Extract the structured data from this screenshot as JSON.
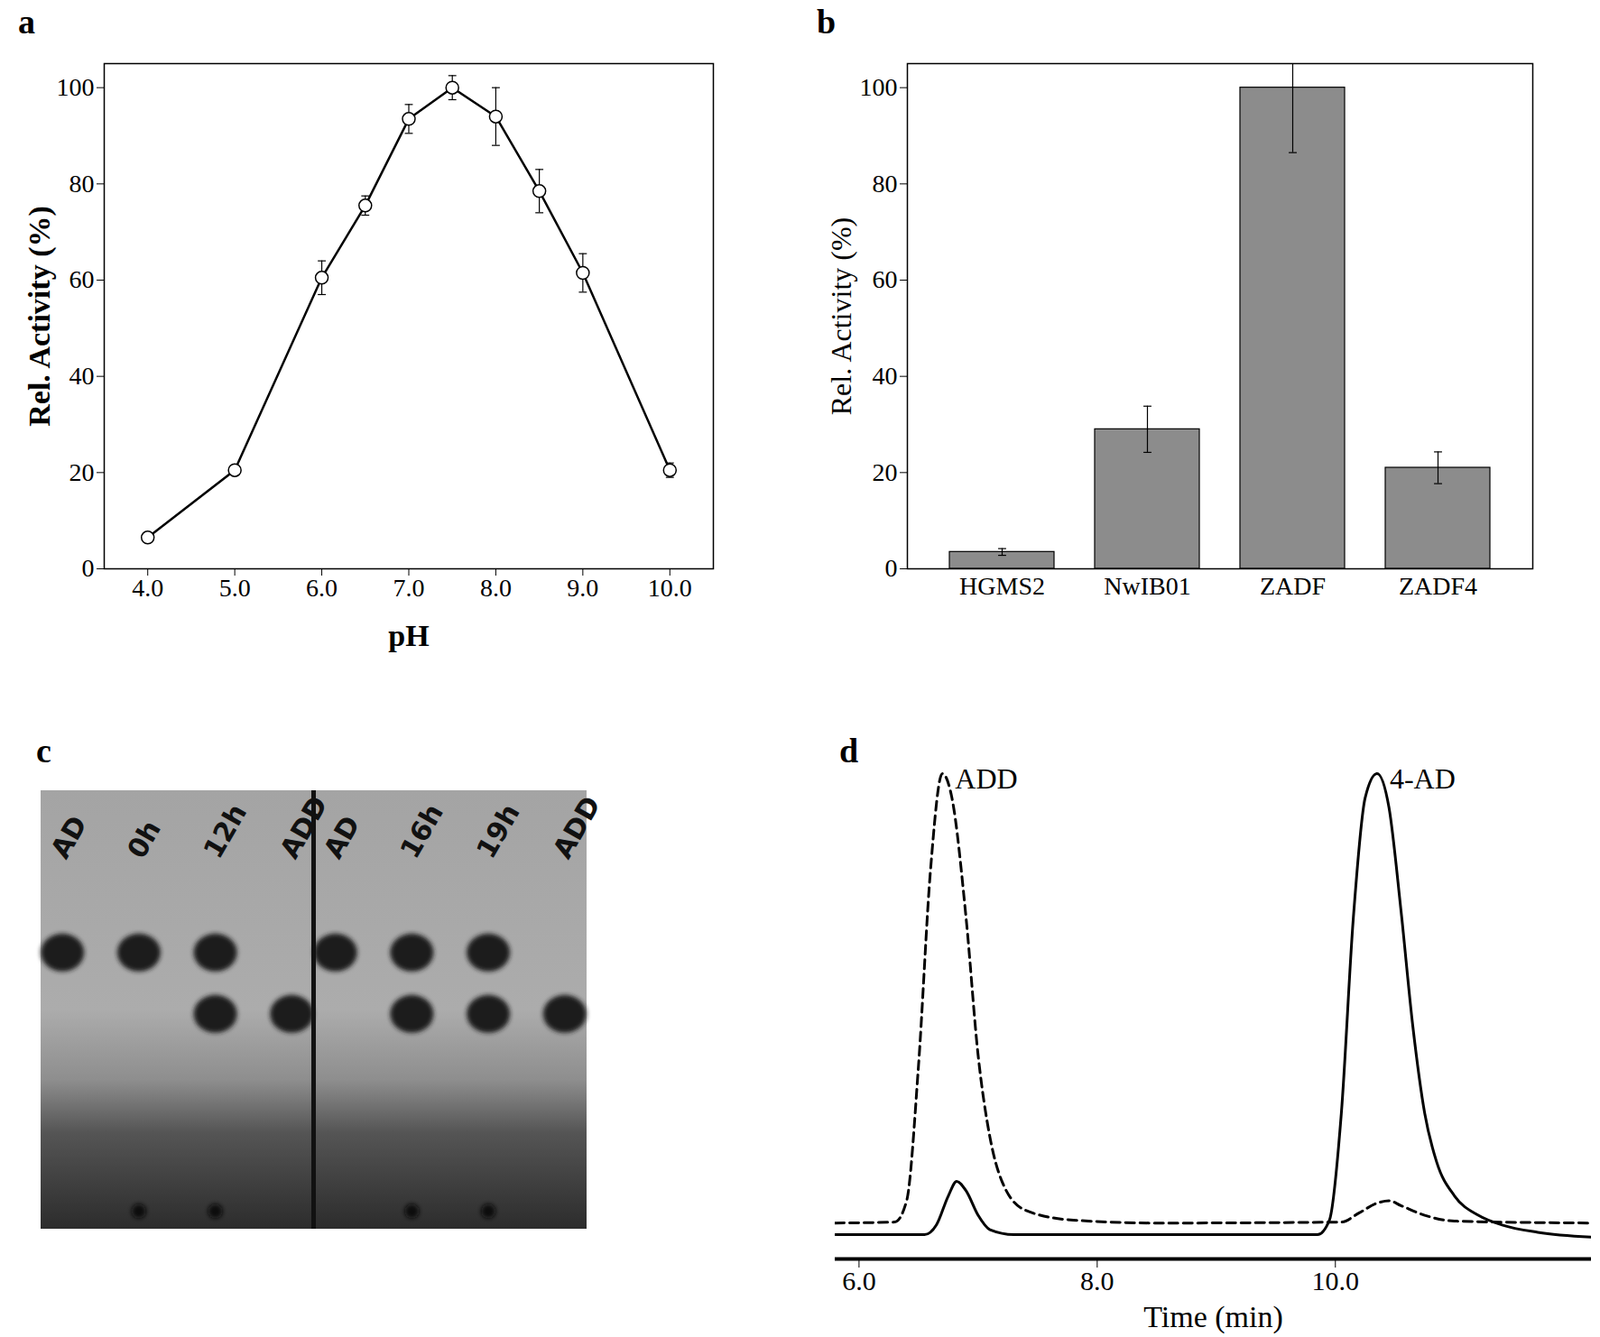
{
  "chart_data": [
    {
      "panel": "a",
      "type": "line",
      "x_label": "pH",
      "y_label": "Rel. Activity (%)",
      "x": [
        4.0,
        5.0,
        6.0,
        6.5,
        7.0,
        7.5,
        8.0,
        8.5,
        9.0,
        10.0
      ],
      "values": [
        6.5,
        20.5,
        60.5,
        75.5,
        93.5,
        100,
        94,
        78.5,
        61.5,
        20.5
      ],
      "errors": [
        1,
        1,
        3.5,
        2,
        3,
        2.5,
        6,
        4.5,
        4,
        1.5
      ],
      "color": "#000000",
      "marker": "circle",
      "line_style": "solid",
      "xlim": [
        3.5,
        10.5
      ],
      "xticks": [
        {
          "value": 4,
          "label": "4.0"
        },
        {
          "value": 5,
          "label": "5.0"
        },
        {
          "value": 6,
          "label": "6.0"
        },
        {
          "value": 7,
          "label": "7.0"
        },
        {
          "value": 8,
          "label": "8.0"
        },
        {
          "value": 9,
          "label": "9.0"
        },
        {
          "value": 10,
          "label": "10.0"
        }
      ],
      "ylim": [
        0,
        105
      ],
      "yticks": [
        0,
        20,
        40,
        60,
        80,
        100
      ],
      "grid": false
    },
    {
      "panel": "b",
      "type": "bar",
      "y_label": "Rel. Activity (%)",
      "categories": [
        "HGMS2",
        "NwIB01",
        "ZADF",
        "ZADF4"
      ],
      "values": [
        3.5,
        29,
        100,
        21
      ],
      "errors": [
        0.7,
        4.8,
        13.5,
        3.3
      ],
      "color": "#8c8c8c",
      "ylim": [
        0,
        105
      ],
      "yticks": [
        0,
        20,
        40,
        60,
        80,
        100
      ],
      "grid": false
    },
    {
      "panel": "c",
      "type": "tlc",
      "plates": [
        {
          "lanes": [
            {
              "label": "AD",
              "spots": [
                "AD"
              ],
              "origin": false
            },
            {
              "label": "0h",
              "spots": [
                "AD"
              ],
              "origin": true
            },
            {
              "label": "12h",
              "spots": [
                "AD",
                "ADD"
              ],
              "origin": true
            },
            {
              "label": "ADD",
              "spots": [
                "ADD"
              ],
              "origin": false
            }
          ]
        },
        {
          "lanes": [
            {
              "label": "AD",
              "spots": [
                "AD"
              ],
              "origin": false
            },
            {
              "label": "16h",
              "spots": [
                "AD",
                "ADD"
              ],
              "origin": true
            },
            {
              "label": "19h",
              "spots": [
                "AD",
                "ADD"
              ],
              "origin": true
            },
            {
              "label": "ADD",
              "spots": [
                "ADD"
              ],
              "origin": false
            }
          ]
        }
      ]
    },
    {
      "panel": "d",
      "type": "line",
      "x_label": "Time (min)",
      "tick_labels": "x",
      "series": [
        {
          "color": "#000000",
          "line_style": "dashed",
          "x": [
            5.8,
            6.3,
            6.4,
            6.5,
            6.6,
            6.7,
            6.78,
            6.9,
            7.0,
            7.1,
            7.2,
            7.4,
            7.8,
            8.5,
            10.05,
            10.2,
            10.35,
            10.45,
            10.55,
            10.75,
            11.0,
            12.15
          ],
          "values": [
            7.4,
            7.6,
            12,
            40,
            80,
            100,
            95,
            70,
            42,
            25,
            16,
            10,
            8,
            7.4,
            7.6,
            9.5,
            11.5,
            12,
            11,
            9,
            7.8,
            7.4
          ]
        },
        {
          "color": "#000000",
          "line_style": "solid",
          "x": [
            5.8,
            6.55,
            6.65,
            6.75,
            6.82,
            6.9,
            7.0,
            7.1,
            7.3,
            9.0,
            9.85,
            9.95,
            10.05,
            10.15,
            10.25,
            10.35,
            10.45,
            10.55,
            10.65,
            10.75,
            10.85,
            11.0,
            11.2,
            11.4,
            11.7,
            12.15
          ],
          "values": [
            5,
            5,
            7,
            13,
            16,
            14,
            9,
            6,
            5,
            5,
            5,
            8,
            30,
            70,
            95,
            100,
            93,
            72,
            48,
            30,
            20,
            13,
            9,
            7,
            5.5,
            4.5
          ]
        }
      ],
      "annotations": [
        {
          "text": "ADD",
          "x": 6.7,
          "y": 100
        },
        {
          "text": "4-AD",
          "x": 10.35,
          "y": 100
        }
      ],
      "xlim": [
        5.8,
        12.15
      ],
      "xticks": [
        {
          "value": 6,
          "label": "6.0"
        },
        {
          "value": 8,
          "label": "8.0"
        },
        {
          "value": 10,
          "label": "10.0"
        }
      ],
      "ylim": [
        0,
        105
      ],
      "grid": false
    }
  ]
}
